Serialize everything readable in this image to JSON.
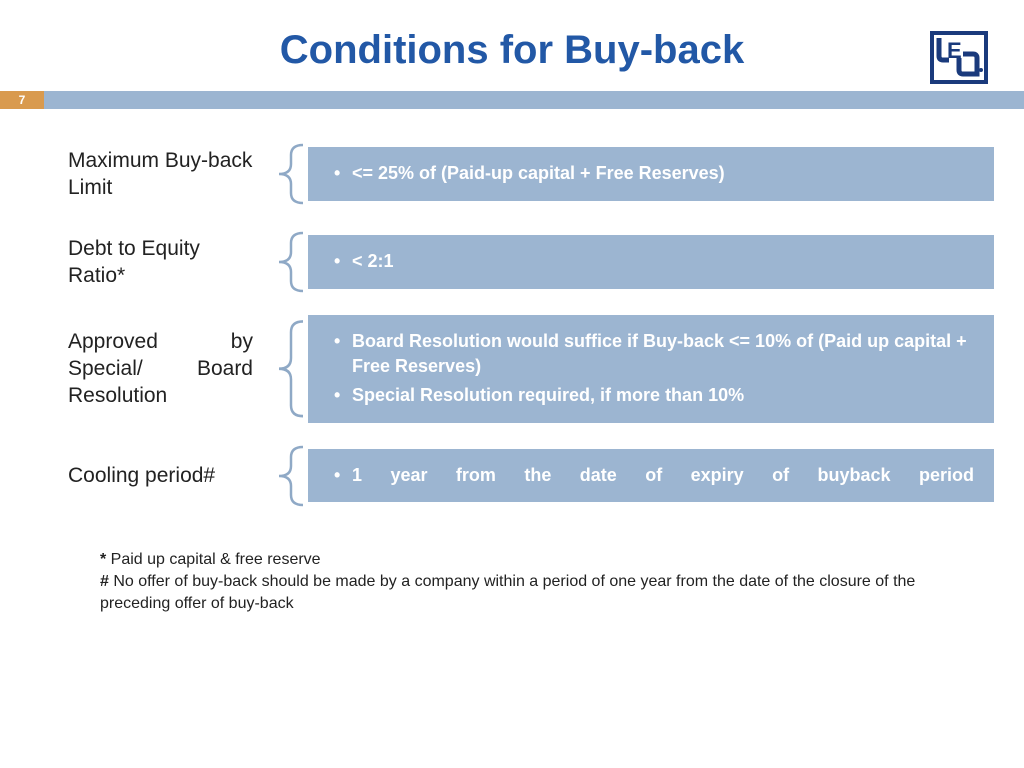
{
  "title": "Conditions for Buy-back",
  "pageNumber": "7",
  "colors": {
    "titleColor": "#2258a6",
    "barColor": "#9cb5d1",
    "pageNumBg": "#d99a4e",
    "boxBg": "#9cb5d1",
    "boxText": "#ffffff",
    "bracketStroke": "#8fa9c6"
  },
  "rows": [
    {
      "label": "Maximum Buy-back Limit",
      "items": [
        "<= 25% of (Paid-up capital + Free Reserves)"
      ]
    },
    {
      "label": "Debt to Equity Ratio*",
      "items": [
        "< 2:1"
      ]
    },
    {
      "label": "Approved by Special/ Board Resolution",
      "labelJustify": true,
      "items": [
        "Board Resolution would suffice if Buy-back <= 10% of (Paid up capital + Free Reserves)",
        "Special Resolution required, if more than 10%"
      ]
    },
    {
      "label": "Cooling period#",
      "items": [
        "1 year from the date of expiry of buyback period"
      ],
      "itemJustify": true
    }
  ],
  "footnotes": [
    {
      "marker": "*",
      "text": " Paid up capital & free reserve"
    },
    {
      "marker": "#",
      "text": "  No offer of buy-back should be made by a company within a period of one year from the date of the closure of the preceding offer of buy-back"
    }
  ]
}
